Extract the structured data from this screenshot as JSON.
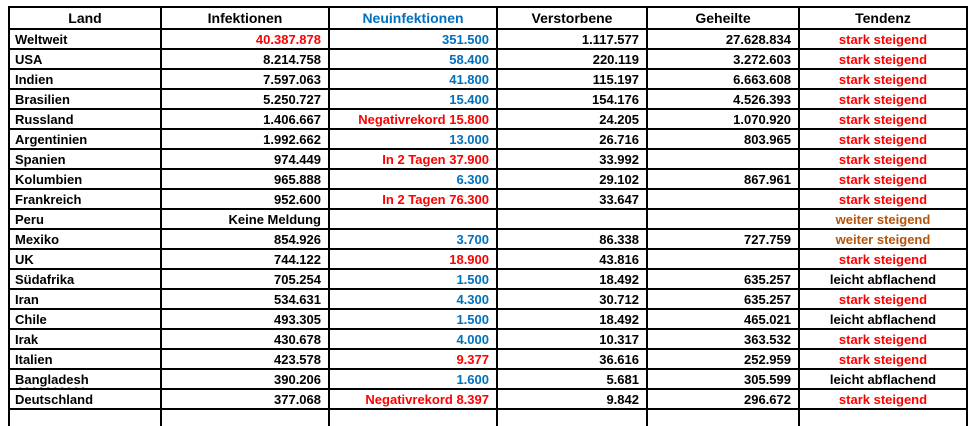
{
  "colors": {
    "red": "#FF0000",
    "blue": "#0070C0",
    "brown": "#B4540A",
    "black": "#000000"
  },
  "table": {
    "columns": [
      {
        "label": "Land",
        "color": "black"
      },
      {
        "label": "Infektionen",
        "color": "black"
      },
      {
        "label": "Neuinfektionen",
        "color": "blue"
      },
      {
        "label": "Verstorbene",
        "color": "black"
      },
      {
        "label": "Geheilte",
        "color": "black"
      },
      {
        "label": "Tendenz",
        "color": "black"
      }
    ],
    "rows": [
      {
        "land": {
          "text": "Weltweit",
          "color": "black"
        },
        "infektionen": {
          "text": "40.387.878",
          "color": "red"
        },
        "neuinfektionen": {
          "text": "351.500",
          "color": "blue"
        },
        "verstorbene": {
          "text": "1.117.577",
          "color": "black"
        },
        "geheilte": {
          "text": "27.628.834",
          "color": "black"
        },
        "tendenz": {
          "text": "stark steigend",
          "color": "red"
        }
      },
      {
        "land": {
          "text": "USA",
          "color": "black"
        },
        "infektionen": {
          "text": "8.214.758",
          "color": "black"
        },
        "neuinfektionen": {
          "text": "58.400",
          "color": "blue"
        },
        "verstorbene": {
          "text": "220.119",
          "color": "black"
        },
        "geheilte": {
          "text": "3.272.603",
          "color": "black"
        },
        "tendenz": {
          "text": "stark steigend",
          "color": "red"
        }
      },
      {
        "land": {
          "text": "Indien",
          "color": "black"
        },
        "infektionen": {
          "text": "7.597.063",
          "color": "black"
        },
        "neuinfektionen": {
          "text": "41.800",
          "color": "blue"
        },
        "verstorbene": {
          "text": "115.197",
          "color": "black"
        },
        "geheilte": {
          "text": "6.663.608",
          "color": "black"
        },
        "tendenz": {
          "text": "stark steigend",
          "color": "red"
        }
      },
      {
        "land": {
          "text": "Brasilien",
          "color": "black"
        },
        "infektionen": {
          "text": "5.250.727",
          "color": "black"
        },
        "neuinfektionen": {
          "text": "15.400",
          "color": "blue"
        },
        "verstorbene": {
          "text": "154.176",
          "color": "black"
        },
        "geheilte": {
          "text": "4.526.393",
          "color": "black"
        },
        "tendenz": {
          "text": "stark steigend",
          "color": "red"
        }
      },
      {
        "land": {
          "text": "Russland",
          "color": "black"
        },
        "infektionen": {
          "text": "1.406.667",
          "color": "black"
        },
        "neuinfektionen": {
          "text": "Negativrekord 15.800",
          "color": "red"
        },
        "verstorbene": {
          "text": "24.205",
          "color": "black"
        },
        "geheilte": {
          "text": "1.070.920",
          "color": "black"
        },
        "tendenz": {
          "text": "stark steigend",
          "color": "red"
        }
      },
      {
        "land": {
          "text": "Argentinien",
          "color": "black"
        },
        "infektionen": {
          "text": "1.992.662",
          "color": "black"
        },
        "neuinfektionen": {
          "text": "13.000",
          "color": "blue"
        },
        "verstorbene": {
          "text": "26.716",
          "color": "black"
        },
        "geheilte": {
          "text": "803.965",
          "color": "black"
        },
        "tendenz": {
          "text": "stark steigend",
          "color": "red"
        }
      },
      {
        "land": {
          "text": "Spanien",
          "color": "black"
        },
        "infektionen": {
          "text": "974.449",
          "color": "black"
        },
        "neuinfektionen": {
          "text": "In 2 Tagen 37.900",
          "color": "red"
        },
        "verstorbene": {
          "text": "33.992",
          "color": "black"
        },
        "geheilte": {
          "text": "",
          "color": "black"
        },
        "tendenz": {
          "text": "stark steigend",
          "color": "red"
        }
      },
      {
        "land": {
          "text": "Kolumbien",
          "color": "black"
        },
        "infektionen": {
          "text": "965.888",
          "color": "black"
        },
        "neuinfektionen": {
          "text": "6.300",
          "color": "blue"
        },
        "verstorbene": {
          "text": "29.102",
          "color": "black"
        },
        "geheilte": {
          "text": "867.961",
          "color": "black"
        },
        "tendenz": {
          "text": "stark steigend",
          "color": "red"
        }
      },
      {
        "land": {
          "text": "Frankreich",
          "color": "black"
        },
        "infektionen": {
          "text": "952.600",
          "color": "black"
        },
        "neuinfektionen": {
          "text": "In 2 Tagen 76.300",
          "color": "red"
        },
        "verstorbene": {
          "text": "33.647",
          "color": "black"
        },
        "geheilte": {
          "text": "",
          "color": "black"
        },
        "tendenz": {
          "text": "stark steigend",
          "color": "red"
        }
      },
      {
        "land": {
          "text": "Peru",
          "color": "black"
        },
        "infektionen": {
          "text": "Keine Meldung",
          "color": "black"
        },
        "neuinfektionen": {
          "text": "",
          "color": "black"
        },
        "verstorbene": {
          "text": "",
          "color": "black"
        },
        "geheilte": {
          "text": "",
          "color": "black"
        },
        "tendenz": {
          "text": "weiter steigend",
          "color": "brown"
        }
      },
      {
        "land": {
          "text": "Mexiko",
          "color": "black"
        },
        "infektionen": {
          "text": "854.926",
          "color": "black"
        },
        "neuinfektionen": {
          "text": "3.700",
          "color": "blue"
        },
        "verstorbene": {
          "text": "86.338",
          "color": "black"
        },
        "geheilte": {
          "text": "727.759",
          "color": "black"
        },
        "tendenz": {
          "text": "weiter steigend",
          "color": "brown"
        }
      },
      {
        "land": {
          "text": "UK",
          "color": "black"
        },
        "infektionen": {
          "text": "744.122",
          "color": "black"
        },
        "neuinfektionen": {
          "text": "18.900",
          "color": "red"
        },
        "verstorbene": {
          "text": "43.816",
          "color": "black"
        },
        "geheilte": {
          "text": "",
          "color": "black"
        },
        "tendenz": {
          "text": "stark steigend",
          "color": "red"
        }
      },
      {
        "land": {
          "text": "Südafrika",
          "color": "black"
        },
        "infektionen": {
          "text": "705.254",
          "color": "black"
        },
        "neuinfektionen": {
          "text": "1.500",
          "color": "blue"
        },
        "verstorbene": {
          "text": "18.492",
          "color": "black"
        },
        "geheilte": {
          "text": "635.257",
          "color": "black"
        },
        "tendenz": {
          "text": "leicht abflachend",
          "color": "black"
        }
      },
      {
        "land": {
          "text": "Iran",
          "color": "black"
        },
        "infektionen": {
          "text": "534.631",
          "color": "black"
        },
        "neuinfektionen": {
          "text": "4.300",
          "color": "blue"
        },
        "verstorbene": {
          "text": "30.712",
          "color": "black"
        },
        "geheilte": {
          "text": "635.257",
          "color": "black"
        },
        "tendenz": {
          "text": "stark steigend",
          "color": "red"
        }
      },
      {
        "land": {
          "text": "Chile",
          "color": "black"
        },
        "infektionen": {
          "text": "493.305",
          "color": "black"
        },
        "neuinfektionen": {
          "text": "1.500",
          "color": "blue"
        },
        "verstorbene": {
          "text": "18.492",
          "color": "black"
        },
        "geheilte": {
          "text": "465.021",
          "color": "black"
        },
        "tendenz": {
          "text": "leicht abflachend",
          "color": "black"
        }
      },
      {
        "land": {
          "text": "Irak",
          "color": "black"
        },
        "infektionen": {
          "text": "430.678",
          "color": "black"
        },
        "neuinfektionen": {
          "text": "4.000",
          "color": "blue"
        },
        "verstorbene": {
          "text": "10.317",
          "color": "black"
        },
        "geheilte": {
          "text": "363.532",
          "color": "black"
        },
        "tendenz": {
          "text": "stark steigend",
          "color": "red"
        }
      },
      {
        "land": {
          "text": "Italien",
          "color": "black"
        },
        "infektionen": {
          "text": "423.578",
          "color": "black"
        },
        "neuinfektionen": {
          "text": "9.377",
          "color": "red"
        },
        "verstorbene": {
          "text": "36.616",
          "color": "black"
        },
        "geheilte": {
          "text": "252.959",
          "color": "black"
        },
        "tendenz": {
          "text": "stark steigend",
          "color": "red"
        }
      },
      {
        "land": {
          "text": "Bangladesh",
          "color": "black",
          "misspelled": true
        },
        "infektionen": {
          "text": "390.206",
          "color": "black"
        },
        "neuinfektionen": {
          "text": "1.600",
          "color": "blue"
        },
        "verstorbene": {
          "text": "5.681",
          "color": "black"
        },
        "geheilte": {
          "text": "305.599",
          "color": "black"
        },
        "tendenz": {
          "text": "leicht abflachend",
          "color": "black"
        }
      },
      {
        "land": {
          "text": "Deutschland",
          "color": "black"
        },
        "infektionen": {
          "text": "377.068",
          "color": "black"
        },
        "neuinfektionen": {
          "text": "Negativrekord 8.397",
          "color": "red"
        },
        "verstorbene": {
          "text": "9.842",
          "color": "black"
        },
        "geheilte": {
          "text": "296.672",
          "color": "black"
        },
        "tendenz": {
          "text": "stark steigend",
          "color": "red"
        }
      }
    ]
  }
}
